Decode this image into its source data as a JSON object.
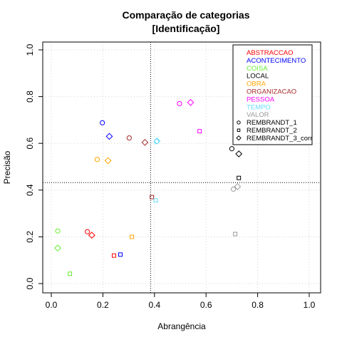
{
  "chart_data": {
    "type": "scatter",
    "title": "Comparação de categorias",
    "subtitle": "[Identificação]",
    "xlabel": "Abrangência",
    "ylabel": "Precisão",
    "xlim": [
      0,
      1
    ],
    "ylim": [
      0,
      1
    ],
    "xticks": [
      "0.0",
      "0.2",
      "0.4",
      "0.6",
      "0.8",
      "1.0"
    ],
    "yticks": [
      "0.0",
      "0.2",
      "0.4",
      "0.6",
      "0.8",
      "1.0"
    ],
    "grid": true,
    "reference_lines": {
      "x": 0.385,
      "y": 0.432
    },
    "legend_position": "top-right",
    "categories": [
      {
        "name": "ABSTRACCAO",
        "color": "#ff0000"
      },
      {
        "name": "ACONTECIMENTO",
        "color": "#0000ff"
      },
      {
        "name": "COISA",
        "color": "#66ee33"
      },
      {
        "name": "LOCAL",
        "color": "#000000"
      },
      {
        "name": "OBRA",
        "color": "#ffa500"
      },
      {
        "name": "ORGANIZACAO",
        "color": "#a52a2a"
      },
      {
        "name": "PESSOA",
        "color": "#ff00ff"
      },
      {
        "name": "TEMPO",
        "color": "#66ddff"
      },
      {
        "name": "VALOR",
        "color": "#999999"
      }
    ],
    "series": [
      {
        "name": "REMBRANDT_1",
        "marker": "circle"
      },
      {
        "name": "REMBRANDT_2",
        "marker": "square"
      },
      {
        "name": "REMBRANDT_3_corr",
        "marker": "diamond"
      }
    ],
    "points": [
      {
        "category": "ABSTRACCAO",
        "series": "REMBRANDT_1",
        "x": 0.14,
        "y": 0.222
      },
      {
        "category": "ABSTRACCAO",
        "series": "REMBRANDT_3_corr",
        "x": 0.157,
        "y": 0.207
      },
      {
        "category": "ACONTECIMENTO",
        "series": "REMBRANDT_1",
        "x": 0.198,
        "y": 0.688
      },
      {
        "category": "ACONTECIMENTO",
        "series": "REMBRANDT_3_corr",
        "x": 0.225,
        "y": 0.63
      },
      {
        "category": "ACONTECIMENTO",
        "series": "REMBRANDT_2",
        "x": 0.268,
        "y": 0.124
      },
      {
        "category": "COISA",
        "series": "REMBRANDT_1",
        "x": 0.025,
        "y": 0.225
      },
      {
        "category": "COISA",
        "series": "REMBRANDT_3_corr",
        "x": 0.025,
        "y": 0.152
      },
      {
        "category": "COISA",
        "series": "REMBRANDT_2",
        "x": 0.072,
        "y": 0.042
      },
      {
        "category": "LOCAL",
        "series": "REMBRANDT_1",
        "x": 0.7,
        "y": 0.577
      },
      {
        "category": "LOCAL",
        "series": "REMBRANDT_3_corr",
        "x": 0.727,
        "y": 0.555
      },
      {
        "category": "LOCAL",
        "series": "REMBRANDT_2",
        "x": 0.727,
        "y": 0.452
      },
      {
        "category": "OBRA",
        "series": "REMBRANDT_1",
        "x": 0.178,
        "y": 0.531
      },
      {
        "category": "OBRA",
        "series": "REMBRANDT_3_corr",
        "x": 0.22,
        "y": 0.526
      },
      {
        "category": "OBRA",
        "series": "REMBRANDT_2",
        "x": 0.312,
        "y": 0.2
      },
      {
        "category": "ORGANIZACAO",
        "series": "REMBRANDT_1",
        "x": 0.302,
        "y": 0.623
      },
      {
        "category": "ORGANIZACAO",
        "series": "REMBRANDT_3_corr",
        "x": 0.363,
        "y": 0.604
      },
      {
        "category": "ORGANIZACAO",
        "series": "REMBRANDT_2",
        "x": 0.39,
        "y": 0.37
      },
      {
        "category": "ABSTRACCAO",
        "series": "REMBRANDT_2",
        "x": 0.243,
        "y": 0.12
      },
      {
        "category": "PESSOA",
        "series": "REMBRANDT_1",
        "x": 0.497,
        "y": 0.77
      },
      {
        "category": "PESSOA",
        "series": "REMBRANDT_3_corr",
        "x": 0.54,
        "y": 0.775
      },
      {
        "category": "PESSOA",
        "series": "REMBRANDT_2",
        "x": 0.575,
        "y": 0.652
      },
      {
        "category": "TEMPO",
        "series": "REMBRANDT_1",
        "x": 0.408,
        "y": 0.608
      },
      {
        "category": "TEMPO",
        "series": "REMBRANDT_3_corr",
        "x": 0.41,
        "y": 0.61
      },
      {
        "category": "TEMPO",
        "series": "REMBRANDT_2",
        "x": 0.405,
        "y": 0.356
      },
      {
        "category": "VALOR",
        "series": "REMBRANDT_1",
        "x": 0.706,
        "y": 0.404
      },
      {
        "category": "VALOR",
        "series": "REMBRANDT_3_corr",
        "x": 0.722,
        "y": 0.415
      },
      {
        "category": "VALOR",
        "series": "REMBRANDT_2",
        "x": 0.713,
        "y": 0.212
      }
    ]
  }
}
